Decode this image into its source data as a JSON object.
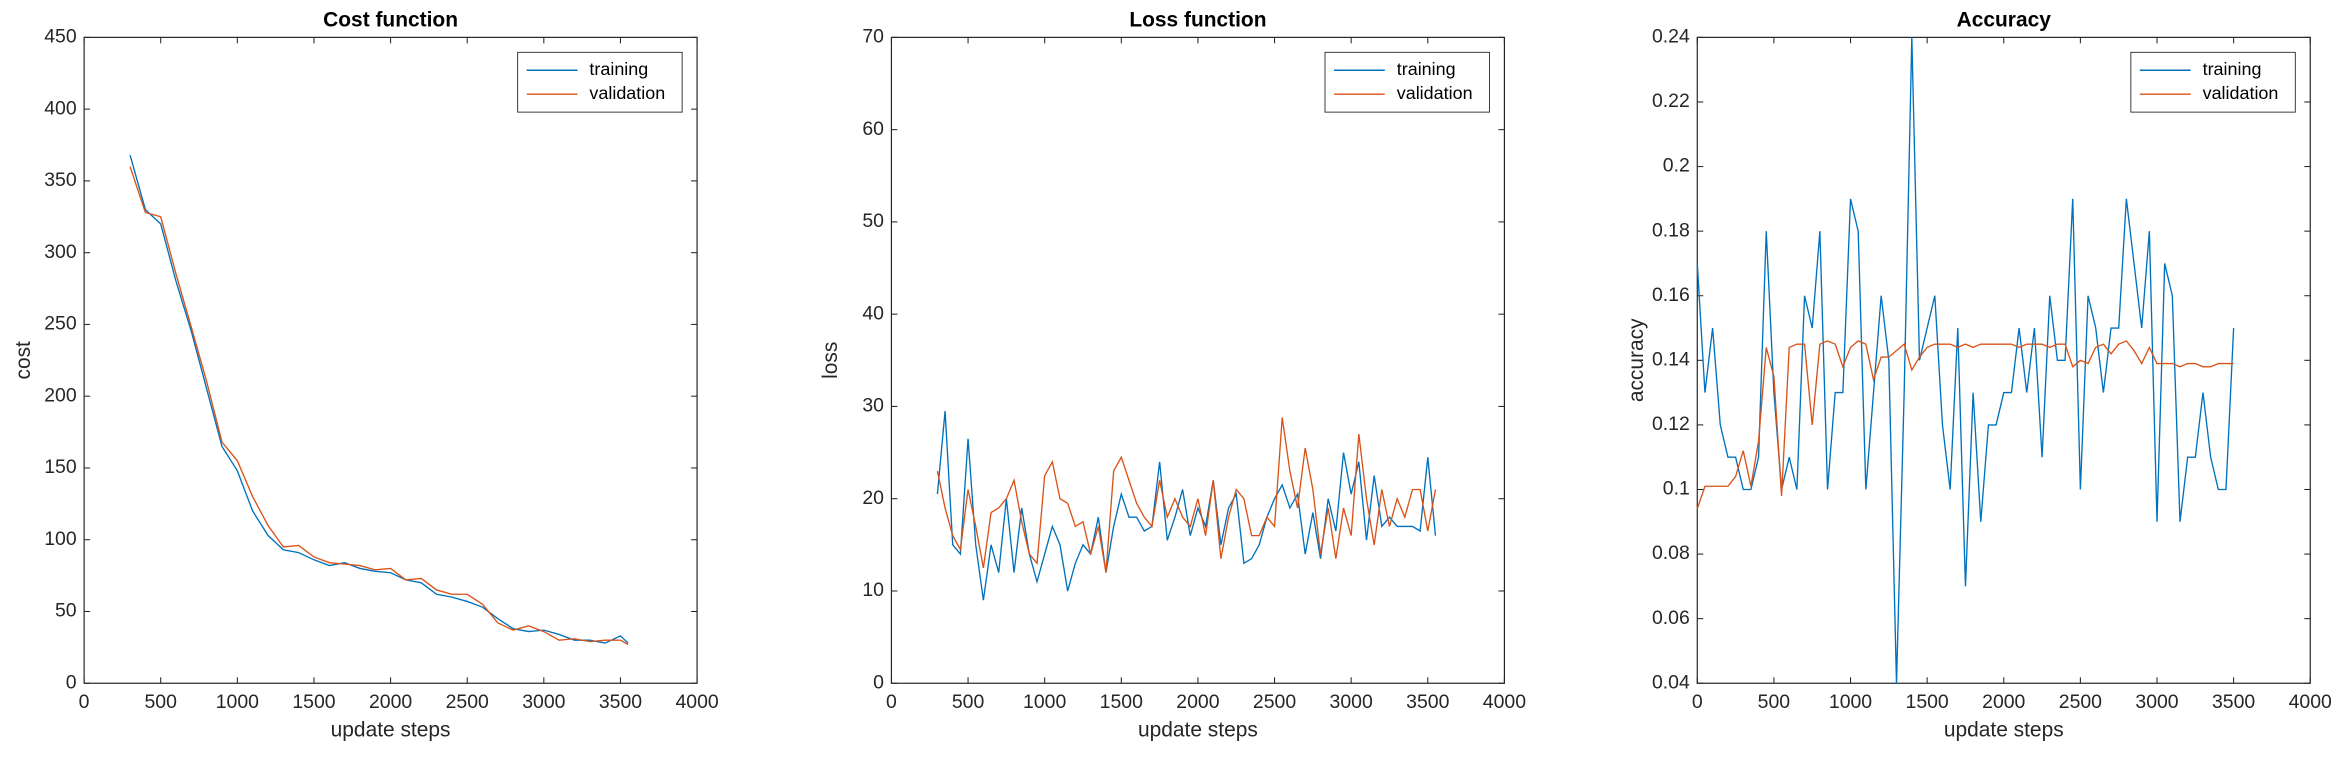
{
  "chart_data": [
    {
      "type": "line",
      "title": "Cost function",
      "xlabel": "update steps",
      "ylabel": "cost",
      "x": [
        300,
        400,
        500,
        600,
        700,
        800,
        900,
        1000,
        1100,
        1200,
        1300,
        1400,
        1500,
        1600,
        1700,
        1800,
        1900,
        2000,
        2100,
        2200,
        2300,
        2400,
        2500,
        2600,
        2700,
        2800,
        2900,
        3000,
        3100,
        3200,
        3300,
        3400,
        3500,
        3550
      ],
      "series": [
        {
          "name": "training",
          "color": "#0072BD",
          "values": [
            368,
            330,
            320,
            280,
            245,
            205,
            165,
            148,
            120,
            103,
            93,
            91,
            86,
            82,
            84,
            80,
            78,
            77,
            72,
            70,
            62,
            60,
            57,
            53,
            45,
            38,
            36,
            37,
            34,
            30,
            30,
            28,
            33,
            28
          ]
        },
        {
          "name": "validation",
          "color": "#D95319",
          "values": [
            360,
            328,
            325,
            285,
            248,
            210,
            168,
            155,
            130,
            110,
            95,
            96,
            88,
            84,
            83,
            82,
            79,
            80,
            72,
            73,
            65,
            62,
            62,
            55,
            42,
            37,
            40,
            36,
            30,
            31,
            29,
            30,
            30,
            27
          ]
        }
      ],
      "xlim": [
        0,
        4000
      ],
      "ylim": [
        0,
        450
      ],
      "xticks": [
        0,
        500,
        1000,
        1500,
        2000,
        2500,
        3000,
        3500,
        4000
      ],
      "yticks": [
        0,
        50,
        100,
        150,
        200,
        250,
        300,
        350,
        400,
        450
      ],
      "legend": "northeast"
    },
    {
      "type": "line",
      "title": "Loss function",
      "xlabel": "update steps",
      "ylabel": "loss",
      "x": [
        300,
        350,
        400,
        450,
        500,
        550,
        600,
        650,
        700,
        750,
        800,
        850,
        900,
        950,
        1000,
        1050,
        1100,
        1150,
        1200,
        1250,
        1300,
        1350,
        1400,
        1450,
        1500,
        1550,
        1600,
        1650,
        1700,
        1750,
        1800,
        1850,
        1900,
        1950,
        2000,
        2050,
        2100,
        2150,
        2200,
        2250,
        2300,
        2350,
        2400,
        2450,
        2500,
        2550,
        2600,
        2650,
        2700,
        2750,
        2800,
        2850,
        2900,
        2950,
        3000,
        3050,
        3100,
        3150,
        3200,
        3250,
        3300,
        3350,
        3400,
        3450,
        3500,
        3550
      ],
      "series": [
        {
          "name": "training",
          "color": "#0072BD",
          "values": [
            20.5,
            29.5,
            15,
            14,
            26.5,
            15,
            9,
            15,
            12,
            20,
            12,
            19,
            14,
            11,
            14,
            17,
            15,
            10,
            13,
            15,
            14,
            18,
            12,
            17,
            20.5,
            18,
            18,
            16.5,
            17,
            24,
            15.5,
            18,
            21,
            16,
            19,
            17,
            22,
            15,
            19,
            20.5,
            13,
            13.5,
            15,
            18,
            20,
            21.5,
            19,
            20.5,
            14,
            18.5,
            13.5,
            20,
            16.5,
            25,
            20.5,
            24,
            15.5,
            22.5,
            17,
            18,
            17,
            17,
            17,
            16.5,
            24.5,
            16
          ]
        },
        {
          "name": "validation",
          "color": "#D95319",
          "values": [
            23,
            19,
            16,
            14.5,
            21,
            17,
            12.5,
            18.5,
            19,
            20,
            22,
            17.5,
            14,
            13,
            22.5,
            24,
            20,
            19.5,
            17,
            17.5,
            14,
            17,
            12,
            23,
            24.5,
            22,
            19.5,
            18,
            17,
            22,
            18,
            20,
            18,
            17,
            20,
            16,
            22,
            13.5,
            18,
            21,
            20,
            16,
            16,
            18,
            17,
            28.8,
            23,
            19,
            25.5,
            21,
            14,
            19,
            13.5,
            19,
            16,
            27,
            20,
            15,
            21,
            17,
            20,
            18,
            21,
            21,
            16.5,
            21
          ]
        }
      ],
      "xlim": [
        0,
        4000
      ],
      "ylim": [
        0,
        70
      ],
      "xticks": [
        0,
        500,
        1000,
        1500,
        2000,
        2500,
        3000,
        3500,
        4000
      ],
      "yticks": [
        0,
        10,
        20,
        30,
        40,
        50,
        60,
        70
      ],
      "legend": "northeast"
    },
    {
      "type": "line",
      "title": "Accuracy",
      "xlabel": "update steps",
      "ylabel": "accuracy",
      "x": [
        0,
        50,
        100,
        150,
        200,
        250,
        300,
        350,
        400,
        450,
        500,
        550,
        600,
        650,
        700,
        750,
        800,
        850,
        900,
        950,
        1000,
        1050,
        1100,
        1150,
        1200,
        1250,
        1300,
        1350,
        1400,
        1450,
        1500,
        1550,
        1600,
        1650,
        1700,
        1750,
        1800,
        1850,
        1900,
        1950,
        2000,
        2050,
        2100,
        2150,
        2200,
        2250,
        2300,
        2350,
        2400,
        2450,
        2500,
        2550,
        2600,
        2650,
        2700,
        2750,
        2800,
        2850,
        2900,
        2950,
        3000,
        3050,
        3100,
        3150,
        3200,
        3250,
        3300,
        3350,
        3400,
        3450,
        3500
      ],
      "series": [
        {
          "name": "training",
          "color": "#0072BD",
          "values": [
            0.17,
            0.13,
            0.15,
            0.12,
            0.11,
            0.11,
            0.1,
            0.1,
            0.11,
            0.18,
            0.13,
            0.1,
            0.11,
            0.1,
            0.16,
            0.15,
            0.18,
            0.1,
            0.13,
            0.13,
            0.19,
            0.18,
            0.1,
            0.13,
            0.16,
            0.14,
            0.04,
            0.13,
            0.24,
            0.14,
            0.15,
            0.16,
            0.12,
            0.1,
            0.15,
            0.07,
            0.13,
            0.09,
            0.12,
            0.12,
            0.13,
            0.13,
            0.15,
            0.13,
            0.15,
            0.11,
            0.16,
            0.14,
            0.14,
            0.19,
            0.1,
            0.16,
            0.15,
            0.13,
            0.15,
            0.15,
            0.19,
            0.17,
            0.15,
            0.18,
            0.09,
            0.17,
            0.16,
            0.09,
            0.11,
            0.11,
            0.13,
            0.11,
            0.1,
            0.1,
            0.15
          ]
        },
        {
          "name": "validation",
          "color": "#D95319",
          "values": [
            0.094,
            0.101,
            0.101,
            0.101,
            0.101,
            0.104,
            0.112,
            0.101,
            0.115,
            0.144,
            0.135,
            0.098,
            0.144,
            0.145,
            0.145,
            0.12,
            0.145,
            0.146,
            0.145,
            0.138,
            0.144,
            0.146,
            0.145,
            0.134,
            0.141,
            0.141,
            0.143,
            0.145,
            0.137,
            0.141,
            0.144,
            0.145,
            0.145,
            0.145,
            0.144,
            0.145,
            0.144,
            0.145,
            0.145,
            0.145,
            0.145,
            0.145,
            0.144,
            0.145,
            0.145,
            0.145,
            0.144,
            0.145,
            0.145,
            0.138,
            0.14,
            0.139,
            0.144,
            0.145,
            0.142,
            0.145,
            0.146,
            0.143,
            0.139,
            0.144,
            0.139,
            0.139,
            0.139,
            0.138,
            0.139,
            0.139,
            0.138,
            0.138,
            0.139,
            0.139,
            0.139
          ]
        }
      ],
      "xlim": [
        0,
        4000
      ],
      "ylim": [
        0.04,
        0.24
      ],
      "xticks": [
        0,
        500,
        1000,
        1500,
        2000,
        2500,
        3000,
        3500,
        4000
      ],
      "yticks": [
        0.04,
        0.06,
        0.08,
        0.1,
        0.12,
        0.14,
        0.16,
        0.18,
        0.2,
        0.22,
        0.24
      ],
      "legend": "northeast"
    }
  ]
}
